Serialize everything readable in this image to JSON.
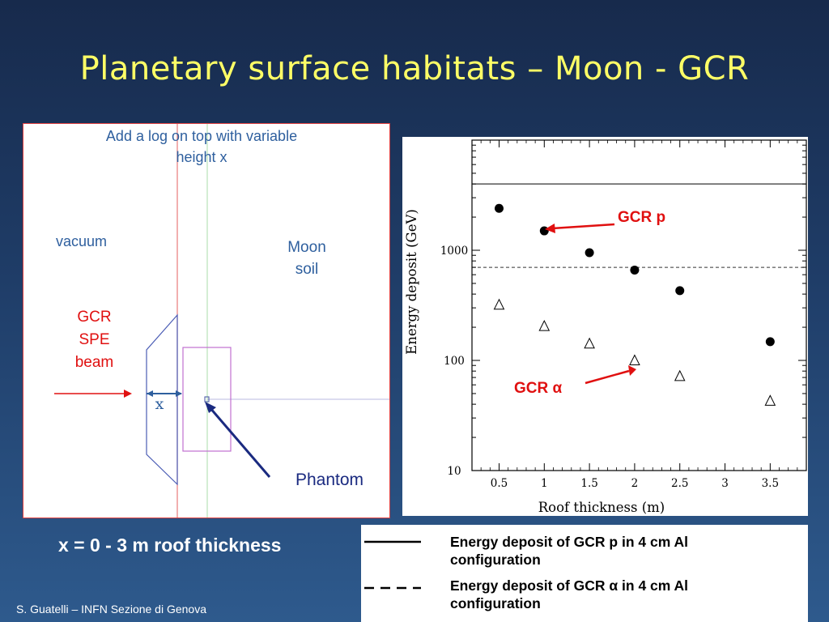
{
  "slide": {
    "title": "Planetary surface habitats – Moon - GCR",
    "footer": "S. Guatelli – INFN Sezione di Genova",
    "caption": "x = 0 - 3 m  roof thickness"
  },
  "geometry": {
    "note_line1": "Add a log on top with variable",
    "note_line2": "height x",
    "vacuum": "vacuum",
    "moon_soil_line1": "Moon",
    "moon_soil_line2": "soil",
    "beam_line1": "GCR",
    "beam_line2": "SPE",
    "beam_line3": "beam",
    "x_label": "x",
    "phantom": "Phantom"
  },
  "plot": {
    "annotation_p": "GCR p",
    "annotation_alpha": "GCR α"
  },
  "legend": {
    "solid_text_line1": "Energy deposit of GCR p in 4 cm Al",
    "solid_text_line2": "configuration",
    "dashed_text_line1": "Energy deposit of GCR α in 4 cm Al",
    "dashed_text_line2": "configuration"
  },
  "colors": {
    "title": "#ffff66",
    "annotation_red": "#e01010",
    "geometry_blue": "#2e5f9e",
    "arrow_navy": "#1a2a80"
  },
  "chart_data": {
    "type": "scatter",
    "xlabel": "Roof thickness (m)",
    "ylabel": "Energy deposit (GeV)",
    "x_ticks": [
      "0.5",
      "1",
      "1.5",
      "2",
      "2.5",
      "3",
      "3.5"
    ],
    "y_ticks": [
      "10",
      "100",
      "1000"
    ],
    "y_scale": "log",
    "xlim": [
      0.2,
      3.9
    ],
    "ylim": [
      10,
      10000
    ],
    "series": [
      {
        "name": "GCR p",
        "marker": "filled-circle",
        "x": [
          0.5,
          1,
          1.5,
          2,
          2.5,
          3.5
        ],
        "y": [
          2400,
          1500,
          950,
          660,
          430,
          148
        ]
      },
      {
        "name": "GCR α",
        "marker": "open-triangle",
        "x": [
          0.5,
          1,
          1.5,
          2,
          2.5,
          3.5
        ],
        "y": [
          320,
          205,
          142,
          100,
          72,
          43
        ]
      }
    ],
    "reference_lines": [
      {
        "style": "solid",
        "y": 4000
      },
      {
        "style": "dashed",
        "y": 700
      }
    ]
  }
}
